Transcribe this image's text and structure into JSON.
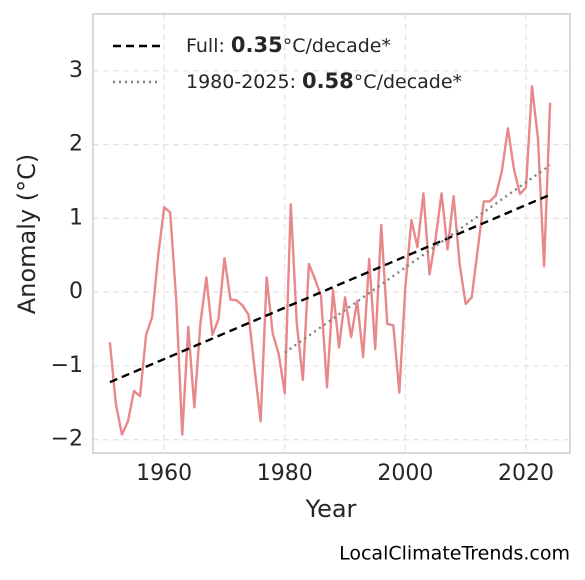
{
  "chart_data": {
    "type": "line",
    "xlabel": "Year",
    "ylabel": "Anomaly (°C)",
    "source": "LocalClimateTrends.com",
    "xlim": [
      1948.2,
      2027.3
    ],
    "xticks": [
      1960,
      1980,
      2000,
      2020
    ],
    "ylim": [
      -2.18,
      3.77
    ],
    "yticks": [
      {
        "value": -2,
        "label": "−2"
      },
      {
        "value": -1,
        "label": "−1"
      },
      0,
      1,
      2,
      3
    ],
    "grid": true,
    "legend": "upper left",
    "series": [
      {
        "name": "Anomaly",
        "color": "#e8888a",
        "style": "solid",
        "x": [
          1951,
          1952,
          1953,
          1954,
          1955,
          1956,
          1957,
          1958,
          1959,
          1960,
          1961,
          1962,
          1963,
          1964,
          1965,
          1966,
          1967,
          1968,
          1969,
          1970,
          1971,
          1972,
          1973,
          1974,
          1975,
          1976,
          1977,
          1978,
          1979,
          1980,
          1981,
          1982,
          1983,
          1984,
          1985,
          1986,
          1987,
          1988,
          1989,
          1990,
          1991,
          1992,
          1993,
          1994,
          1995,
          1996,
          1997,
          1998,
          1999,
          2000,
          2001,
          2002,
          2003,
          2004,
          2005,
          2006,
          2007,
          2008,
          2009,
          2010,
          2011,
          2012,
          2013,
          2014,
          2015,
          2016,
          2017,
          2018,
          2019,
          2020,
          2021,
          2022,
          2023,
          2024
        ],
        "values": [
          -0.68,
          -1.52,
          -1.93,
          -1.75,
          -1.34,
          -1.41,
          -0.58,
          -0.34,
          0.49,
          1.15,
          1.08,
          -0.1,
          -1.93,
          -0.47,
          -1.56,
          -0.43,
          0.2,
          -0.58,
          -0.37,
          0.46,
          -0.1,
          -0.11,
          -0.18,
          -0.31,
          -1.04,
          -1.75,
          0.2,
          -0.56,
          -0.84,
          -1.37,
          1.19,
          -0.43,
          -1.19,
          0.38,
          0.18,
          -0.05,
          -1.29,
          0.03,
          -0.75,
          -0.07,
          -0.61,
          -0.12,
          -0.88,
          0.45,
          -0.77,
          0.91,
          -0.43,
          -0.45,
          -1.36,
          0.07,
          0.98,
          0.61,
          1.34,
          0.24,
          0.72,
          1.34,
          0.58,
          1.3,
          0.38,
          -0.16,
          -0.07,
          0.58,
          1.23,
          1.23,
          1.31,
          1.64,
          2.22,
          1.67,
          1.33,
          1.42,
          2.79,
          2.07,
          0.35,
          2.57
        ]
      },
      {
        "label": "Full:",
        "rate": 0.35,
        "unit": "°C/decade*",
        "color": "#000000",
        "style": "dashed",
        "x": [
          1951,
          2024
        ],
        "values": [
          -1.22,
          1.32
        ]
      },
      {
        "label": "1980-2025:",
        "rate": 0.58,
        "unit": "°C/decade*",
        "color": "#808080",
        "style": "dotted",
        "x": [
          1980,
          2024
        ],
        "values": [
          -0.82,
          1.72
        ]
      }
    ]
  }
}
